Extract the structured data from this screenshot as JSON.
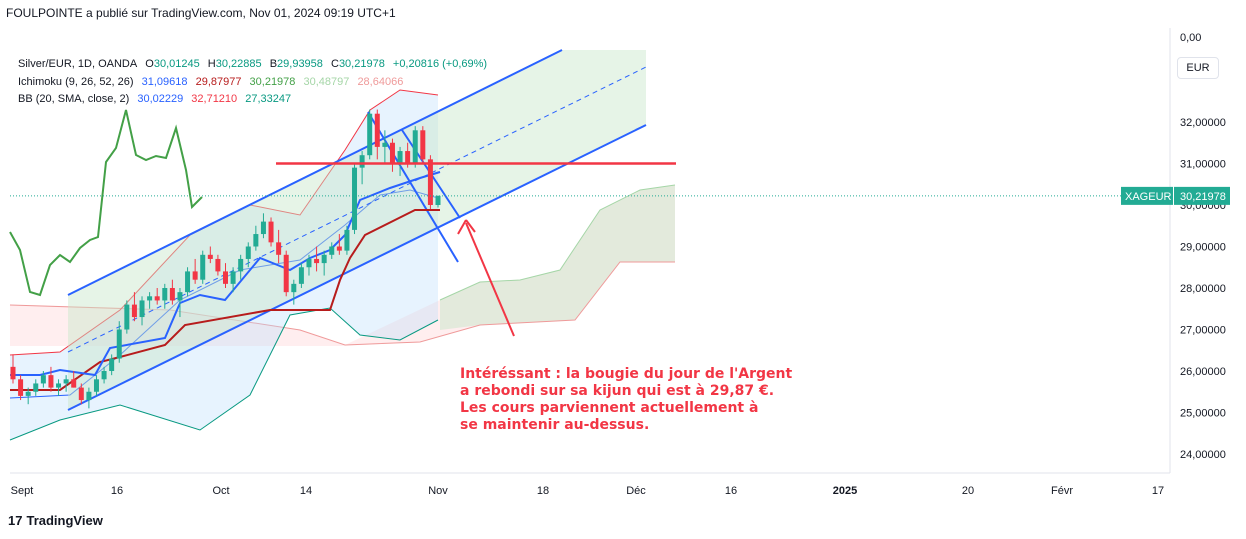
{
  "header": {
    "text": "FOULPOINTE a publié sur TradingView.com, Nov 01, 2024 09:19 UTC+1"
  },
  "legend": {
    "symbol": "Silver/EUR, 1D, OANDA",
    "ohlc": [
      {
        "k": "O",
        "v": "30,01245"
      },
      {
        "k": "H",
        "v": "30,22885"
      },
      {
        "k": "B",
        "v": "29,93958"
      },
      {
        "k": "C",
        "v": "30,21978"
      }
    ],
    "change": "+0,20816 (+0,69%)",
    "ichimoku": {
      "label": "Ichimoku (9, 26, 52, 26)",
      "values": [
        "31,09618",
        "29,87977",
        "30,21978",
        "30,48797",
        "28,64066"
      ]
    },
    "bb": {
      "label": "BB (20, SMA, close, 2)",
      "values": [
        "30,02229",
        "32,71210",
        "27,33247"
      ]
    }
  },
  "currency_button": "EUR",
  "price_tag": {
    "symbol": "XAGEUR",
    "value": "30,21978"
  },
  "annotation": "Intéréssant : la bougie du jour de l'Argent\na rebondi sur sa kijun qui est à 29,87 €.\nLes cours parviennent actuellement à\nse maintenir au-dessus.",
  "footer": {
    "logo": "17",
    "brand": "TradingView"
  },
  "colors": {
    "up": "#22ab94",
    "down": "#f23645",
    "tenkan": "#2962ff",
    "kijun": "#b71c1c",
    "chikou": "#43a047",
    "bb": "#2962ff",
    "channel": "#2962ff",
    "annot": "#f23645"
  },
  "chart_data": {
    "type": "candlestick",
    "y_ticks": [
      "0,00",
      "32,00000",
      "31,00000",
      "30,00000",
      "29,00000",
      "28,00000",
      "27,00000",
      "26,00000",
      "25,00000",
      "24,00000"
    ],
    "x_ticks": [
      "Sept",
      "16",
      "Oct",
      "14",
      "Nov",
      "18",
      "Déc",
      "16",
      "2025",
      "20",
      "Févr",
      "17"
    ],
    "ylim": [
      23.5,
      33.4
    ],
    "candles": [
      [
        26.1,
        26.4,
        25.7,
        25.8
      ],
      [
        25.8,
        25.9,
        25.3,
        25.4
      ],
      [
        25.4,
        25.6,
        25.2,
        25.5
      ],
      [
        25.5,
        25.8,
        25.4,
        25.7
      ],
      [
        25.7,
        26.0,
        25.6,
        25.9
      ],
      [
        25.9,
        26.1,
        25.5,
        25.6
      ],
      [
        25.6,
        25.8,
        25.4,
        25.7
      ],
      [
        25.7,
        25.9,
        25.5,
        25.8
      ],
      [
        25.8,
        26.0,
        25.6,
        25.6
      ],
      [
        25.6,
        25.7,
        25.2,
        25.3
      ],
      [
        25.3,
        25.6,
        25.1,
        25.5
      ],
      [
        25.5,
        25.9,
        25.4,
        25.8
      ],
      [
        25.8,
        26.1,
        25.7,
        26.0
      ],
      [
        26.0,
        26.4,
        25.9,
        26.3
      ],
      [
        26.3,
        27.2,
        26.2,
        27.0
      ],
      [
        27.0,
        27.7,
        26.9,
        27.6
      ],
      [
        27.6,
        27.9,
        27.2,
        27.3
      ],
      [
        27.3,
        27.8,
        27.1,
        27.7
      ],
      [
        27.7,
        27.9,
        27.5,
        27.8
      ],
      [
        27.8,
        28.0,
        27.6,
        27.7
      ],
      [
        27.7,
        28.1,
        27.5,
        28.0
      ],
      [
        28.0,
        28.2,
        27.6,
        27.7
      ],
      [
        27.7,
        28.0,
        27.3,
        27.9
      ],
      [
        27.9,
        28.5,
        27.8,
        28.4
      ],
      [
        28.4,
        28.7,
        28.1,
        28.2
      ],
      [
        28.2,
        28.9,
        28.1,
        28.8
      ],
      [
        28.8,
        29.0,
        28.6,
        28.7
      ],
      [
        28.7,
        28.8,
        28.3,
        28.4
      ],
      [
        28.4,
        28.6,
        28.0,
        28.1
      ],
      [
        28.1,
        28.5,
        27.9,
        28.4
      ],
      [
        28.4,
        28.8,
        28.2,
        28.7
      ],
      [
        28.7,
        29.1,
        28.5,
        29.0
      ],
      [
        29.0,
        29.5,
        28.9,
        29.3
      ],
      [
        29.3,
        29.8,
        29.2,
        29.6
      ],
      [
        29.6,
        29.7,
        29.0,
        29.1
      ],
      [
        29.1,
        29.4,
        28.6,
        28.8
      ],
      [
        28.8,
        28.9,
        27.8,
        27.9
      ],
      [
        27.9,
        28.2,
        27.6,
        28.1
      ],
      [
        28.1,
        28.6,
        28.0,
        28.5
      ],
      [
        28.5,
        28.8,
        28.3,
        28.7
      ],
      [
        28.7,
        29.0,
        28.4,
        28.6
      ],
      [
        28.6,
        28.9,
        28.3,
        28.8
      ],
      [
        28.8,
        29.1,
        28.7,
        29.0
      ],
      [
        29.0,
        29.3,
        28.8,
        28.9
      ],
      [
        28.9,
        29.5,
        28.8,
        29.4
      ],
      [
        29.4,
        31.0,
        29.3,
        30.9
      ],
      [
        30.9,
        31.3,
        30.5,
        31.2
      ],
      [
        31.2,
        32.3,
        31.1,
        32.2
      ],
      [
        32.2,
        32.3,
        31.1,
        31.4
      ],
      [
        31.4,
        31.8,
        31.0,
        31.5
      ],
      [
        31.5,
        31.6,
        30.8,
        31.0
      ],
      [
        31.0,
        31.4,
        30.7,
        31.3
      ],
      [
        31.3,
        31.5,
        30.9,
        31.0
      ],
      [
        31.0,
        31.9,
        30.9,
        31.8
      ],
      [
        31.8,
        31.9,
        31.0,
        31.1
      ],
      [
        31.1,
        31.2,
        29.9,
        30.0
      ],
      [
        30.0,
        30.23,
        29.94,
        30.22
      ]
    ],
    "horizontal_line": 31.0,
    "last_price": 30.21978
  }
}
